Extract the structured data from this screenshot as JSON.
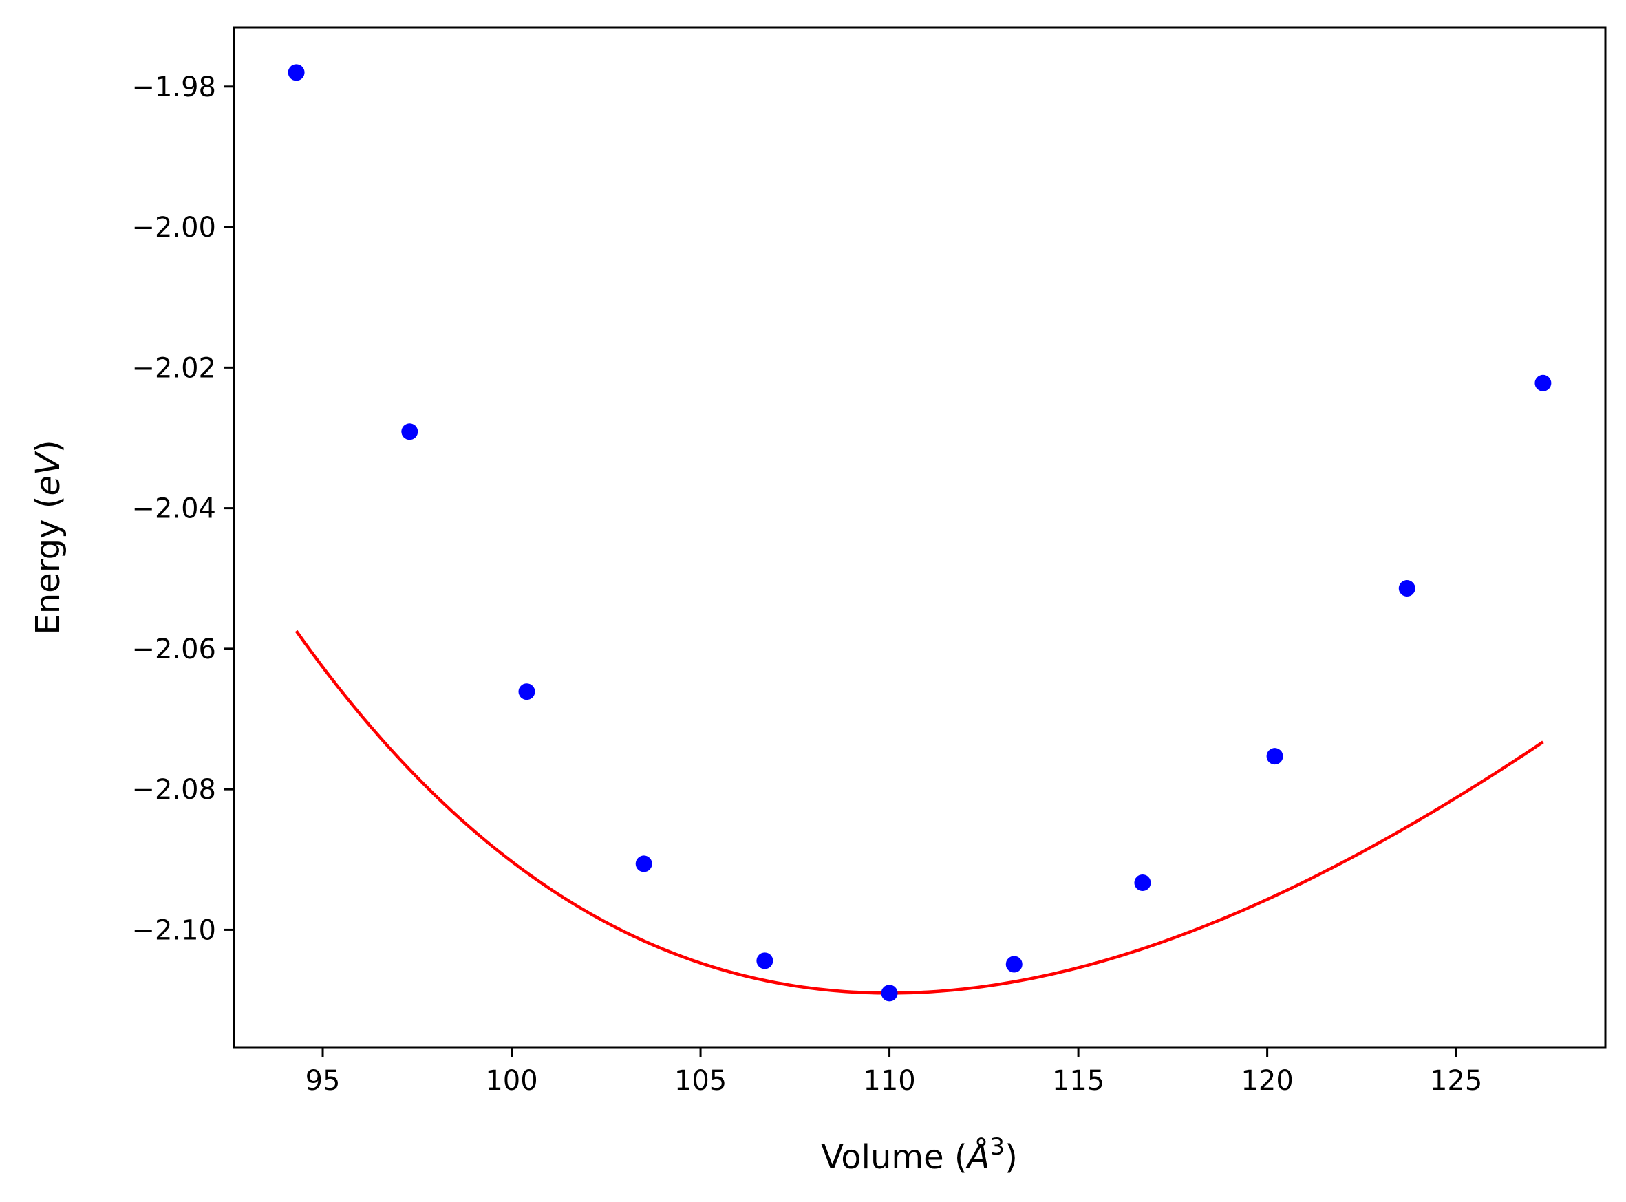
{
  "chart_data": {
    "type": "scatter",
    "title": "",
    "xlabel": "Volume (",
    "xlabel_unit": "Å",
    "xlabel_exp": "3",
    "xlabel_close": ")",
    "ylabel": "Energy (",
    "ylabel_unit": "eV",
    "ylabel_close": ")",
    "xlim": [
      92.65,
      128.95
    ],
    "ylim": [
      -2.1167,
      -1.9716
    ],
    "x_ticks": [
      95,
      100,
      105,
      110,
      115,
      120,
      125
    ],
    "x_tick_labels": [
      "95",
      "100",
      "105",
      "110",
      "115",
      "120",
      "125"
    ],
    "y_ticks": [
      -1.98,
      -2.0,
      -2.02,
      -2.04,
      -2.06,
      -2.08,
      -2.1
    ],
    "y_tick_labels": [
      "−1.98",
      "−2.00",
      "−2.02",
      "−2.04",
      "−2.06",
      "−2.08",
      "−2.10"
    ],
    "grid": false,
    "legend": "none",
    "series": [
      {
        "kind": "markers",
        "color": "#0000ff",
        "x": [
          94.3,
          97.3,
          100.4,
          103.5,
          106.7,
          110.0,
          113.3,
          116.7,
          120.2,
          123.7,
          127.3
        ],
        "y": [
          -1.978,
          -2.0291,
          -2.0661,
          -2.0906,
          -2.1044,
          -2.109,
          -2.1049,
          -2.0933,
          -2.0753,
          -2.0514,
          -2.0222
        ]
      },
      {
        "kind": "fit-line",
        "color": "#ff0000",
        "fit": "birch-murnaghan",
        "params": {
          "E0": -2.109,
          "V0": 110.0,
          "B0": 0.0345,
          "B0p": 4.6
        },
        "x_range": [
          94.3,
          127.3
        ]
      }
    ]
  }
}
